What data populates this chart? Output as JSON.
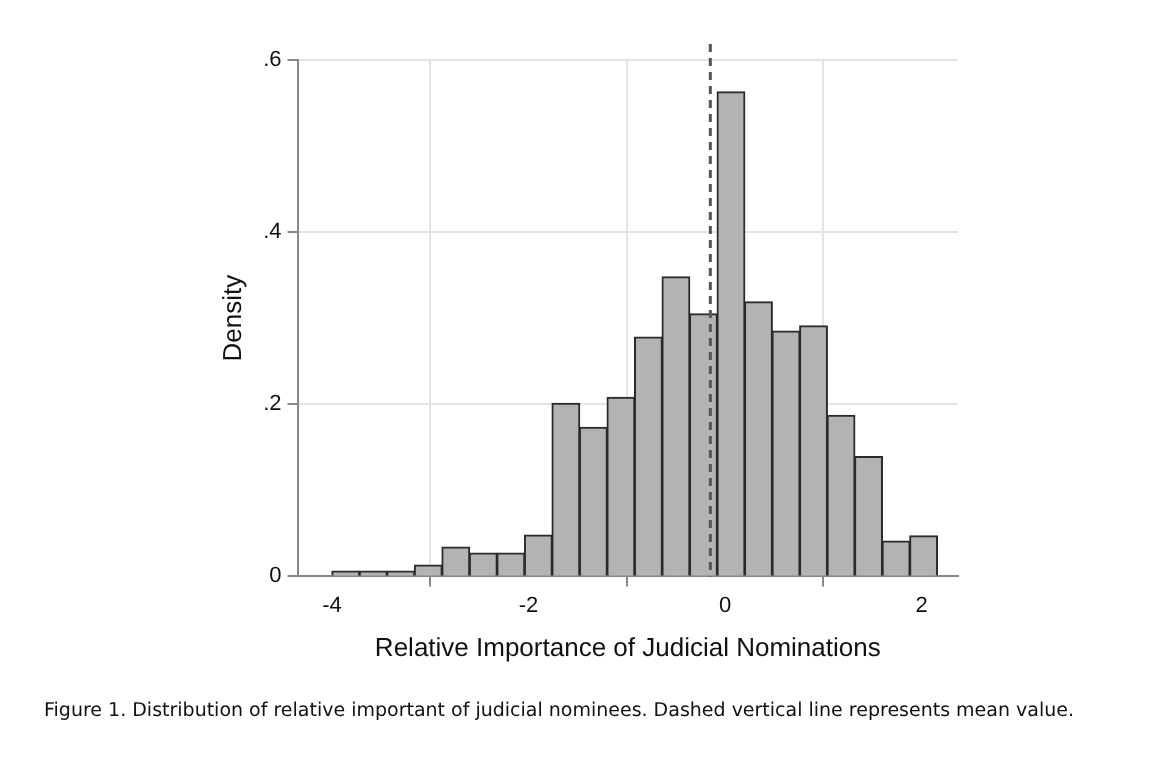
{
  "chart_data": {
    "type": "histogram",
    "xlabel": "Relative Importance of Judicial Nominations",
    "ylabel": "Density",
    "bins": [
      -4,
      -3.72,
      -3.44,
      -3.16,
      -2.88,
      -2.6,
      -2.32,
      -2.04,
      -1.76,
      -1.48,
      -1.2,
      -0.92,
      -0.64,
      -0.36,
      -0.08,
      0.2,
      0.48,
      0.76,
      1.04,
      1.32,
      1.6,
      1.88,
      2.16
    ],
    "values": [
      0.006,
      0.006,
      0.006,
      0.013,
      0.034,
      0.027,
      0.027,
      0.048,
      0.201,
      0.173,
      0.208,
      0.278,
      0.348,
      0.305,
      0.563,
      0.319,
      0.285,
      0.291,
      0.187,
      0.139,
      0.041,
      0.047
    ],
    "color": "#b3b3b3",
    "xlim": [
      -4.35,
      2.37
    ],
    "xticks": [
      -4,
      -2,
      0,
      2
    ],
    "ylim": [
      0,
      0.6
    ],
    "yticks": [
      {
        "value": 0,
        "label": "0"
      },
      {
        "value": 0.2,
        "label": ".2"
      },
      {
        "value": 0.4,
        "label": ".4"
      },
      {
        "value": 0.6,
        "label": ".6"
      }
    ],
    "grid": true,
    "legend": false,
    "ref_lines": [
      {
        "axis": "x",
        "value": -0.15,
        "color": "#555555",
        "line_style": "dashed"
      }
    ],
    "annotations": [
      "Figure 1. Distribution of relative important of judicial nominees. Dashed vertical line represents mean value."
    ]
  }
}
